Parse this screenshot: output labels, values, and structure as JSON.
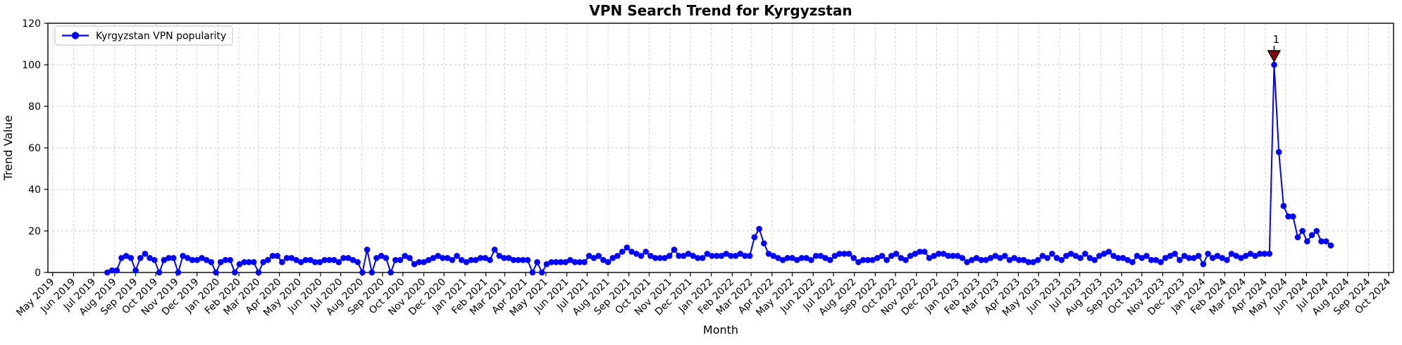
{
  "chart_data": {
    "type": "line",
    "title": "VPN Search Trend for Kyrgyzstan",
    "xlabel": "Month",
    "ylabel": "Trend Value",
    "ylim": [
      0,
      120
    ],
    "y_ticks": [
      0,
      20,
      40,
      60,
      80,
      100,
      120
    ],
    "x_range": [
      "2019-04-24",
      "2024-10-08"
    ],
    "x_ticks": [
      "May 2019",
      "Jun 2019",
      "Jul 2019",
      "Aug 2019",
      "Sep 2019",
      "Oct 2019",
      "Nov 2019",
      "Dec 2019",
      "Jan 2020",
      "Feb 2020",
      "Mar 2020",
      "Apr 2020",
      "May 2020",
      "Jun 2020",
      "Jul 2020",
      "Aug 2020",
      "Sep 2020",
      "Oct 2020",
      "Nov 2020",
      "Dec 2020",
      "Jan 2021",
      "Feb 2021",
      "Mar 2021",
      "Apr 2021",
      "May 2021",
      "Jun 2021",
      "Jul 2021",
      "Aug 2021",
      "Sep 2021",
      "Oct 2021",
      "Nov 2021",
      "Dec 2021",
      "Jan 2022",
      "Feb 2022",
      "Mar 2022",
      "Apr 2022",
      "May 2022",
      "Jun 2022",
      "Jul 2022",
      "Aug 2022",
      "Sep 2022",
      "Oct 2022",
      "Nov 2022",
      "Dec 2022",
      "Jan 2023",
      "Feb 2023",
      "Mar 2023",
      "Apr 2023",
      "May 2023",
      "Jun 2023",
      "Jul 2023",
      "Aug 2023",
      "Sep 2023",
      "Oct 2023",
      "Nov 2023",
      "Dec 2023",
      "Jan 2024",
      "Feb 2024",
      "Mar 2024",
      "Apr 2024",
      "May 2024",
      "Jun 2024",
      "Jul 2024",
      "Aug 2024",
      "Sep 2024",
      "Oct 2024"
    ],
    "grid": {
      "on": true,
      "style": "dashed",
      "color": "#c8c8c8"
    },
    "legend": {
      "position": "upper left"
    },
    "series": [
      {
        "name": "Kyrgyzstan VPN popularity",
        "color": "#0000FF",
        "marker": "circle",
        "x_start": "2019-07-21",
        "x_step_days": 7,
        "values": [
          0,
          1,
          1,
          7,
          8,
          7,
          1,
          7,
          9,
          7,
          6,
          0,
          6,
          7,
          7,
          0,
          8,
          7,
          6,
          6,
          7,
          6,
          5,
          0,
          5,
          6,
          6,
          0,
          4,
          5,
          5,
          5,
          0,
          5,
          6,
          8,
          8,
          5,
          7,
          7,
          6,
          5,
          6,
          6,
          5,
          5,
          6,
          6,
          6,
          5,
          7,
          7,
          6,
          5,
          0,
          11,
          0,
          7,
          8,
          7,
          0,
          6,
          6,
          8,
          7,
          4,
          5,
          5,
          6,
          7,
          8,
          7,
          7,
          6,
          8,
          6,
          5,
          6,
          6,
          7,
          7,
          6,
          11,
          8,
          7,
          7,
          6,
          6,
          6,
          6,
          0,
          5,
          0,
          4,
          5,
          5,
          5,
          5,
          6,
          5,
          5,
          5,
          8,
          7,
          8,
          6,
          5,
          7,
          8,
          10,
          12,
          10,
          9,
          8,
          10,
          8,
          7,
          7,
          7,
          8,
          11,
          8,
          8,
          9,
          8,
          7,
          7,
          9,
          8,
          8,
          8,
          9,
          8,
          8,
          9,
          8,
          8,
          17,
          21,
          14,
          9,
          8,
          7,
          6,
          7,
          7,
          6,
          7,
          7,
          6,
          8,
          8,
          7,
          6,
          8,
          9,
          9,
          9,
          7,
          5,
          6,
          6,
          6,
          7,
          8,
          6,
          8,
          9,
          7,
          6,
          8,
          9,
          10,
          10,
          7,
          8,
          9,
          9,
          8,
          8,
          8,
          7,
          5,
          6,
          7,
          6,
          6,
          7,
          8,
          7,
          8,
          6,
          7,
          6,
          6,
          5,
          5,
          6,
          8,
          7,
          9,
          7,
          6,
          8,
          9,
          8,
          7,
          9,
          7,
          6,
          8,
          9,
          10,
          8,
          7,
          7,
          6,
          5,
          8,
          7,
          8,
          6,
          6,
          5,
          7,
          8,
          9,
          6,
          8,
          7,
          7,
          8,
          4,
          9,
          7,
          8,
          7,
          6,
          9,
          8,
          7,
          8,
          9,
          8,
          9,
          9,
          9,
          100,
          58,
          32,
          27,
          27,
          17,
          20,
          15,
          18,
          20,
          15,
          15,
          13
        ]
      }
    ],
    "annotations": [
      {
        "label": "1",
        "x": "2024-04-14",
        "y": 100,
        "marker": "triangle-down",
        "color": "#8B0000"
      }
    ]
  }
}
